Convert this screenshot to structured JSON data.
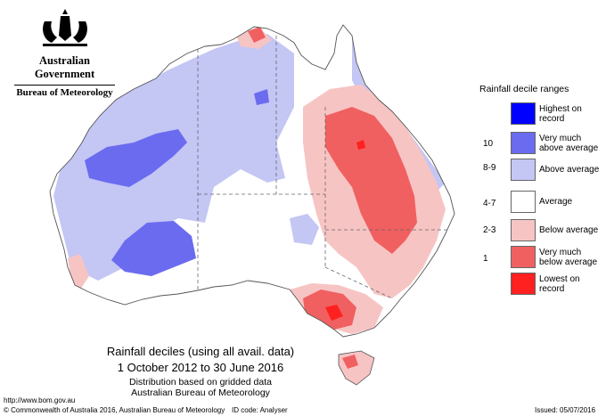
{
  "header": {
    "government": "Australian Government",
    "department": "Bureau of Meteorology"
  },
  "legend": {
    "title": "Rainfall decile ranges",
    "items": [
      {
        "range": "",
        "label": "Highest on record",
        "color": "#0000ff"
      },
      {
        "range": "10",
        "label": "Very much above average",
        "color": "#6b6bf0"
      },
      {
        "range": "8-9",
        "label": "Above average",
        "color": "#c4c6f4"
      },
      {
        "range": "4-7",
        "label": "Average",
        "color": "#ffffff"
      },
      {
        "range": "2-3",
        "label": "Below average",
        "color": "#f7c4c4"
      },
      {
        "range": "1",
        "label": "Very much below average",
        "color": "#f06060"
      },
      {
        "range": "",
        "label": "Lowest on record",
        "color": "#ff2020"
      }
    ]
  },
  "caption": {
    "line1": "Rainfall deciles (using all avail. data)",
    "line2": "1 October 2012 to 30 June 2016",
    "line3": "Distribution based on gridded data",
    "line4": "Australian Bureau of Meteorology"
  },
  "footer": {
    "url": "http://www.bom.gov.au",
    "copyright": "© Commonwealth of Australia 2016, Australian Bureau of Meteorology",
    "id_code": "ID code: Analyser",
    "issued": "Issued: 05/07/2016"
  },
  "map": {
    "colors": {
      "above": "#c4c6f4",
      "very_above": "#6b6bf0",
      "below": "#f7c4c4",
      "very_below": "#f06060",
      "lowest": "#ff2020",
      "border": "#555555"
    }
  }
}
